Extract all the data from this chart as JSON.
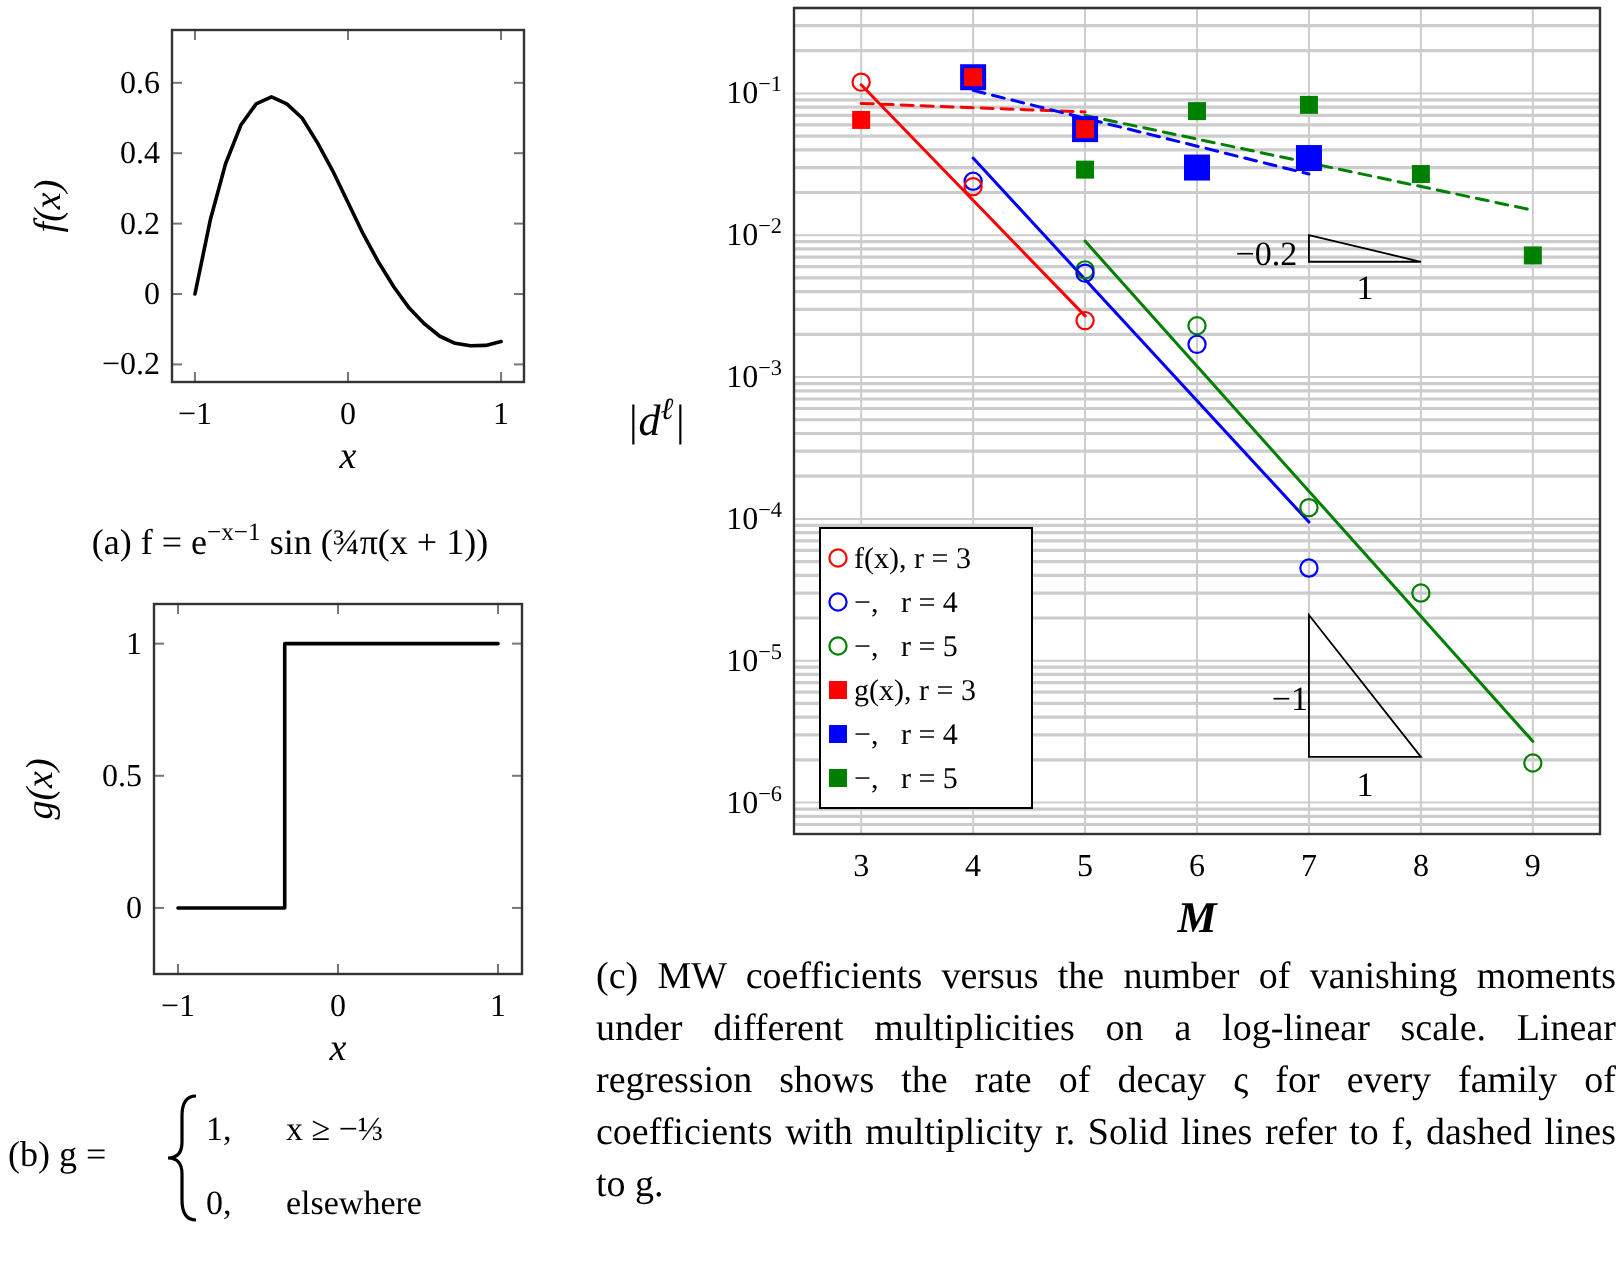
{
  "chart_data": [
    {
      "type": "line",
      "title": "(a) f = e$^{−x−1}$ sin (¾π(x + 1))",
      "xlabel": "x",
      "ylabel": "f(x)",
      "xlim": [
        -1.15,
        1.15
      ],
      "ylim": [
        -0.25,
        0.75
      ],
      "xticks": [
        {
          "value": -1,
          "label": "−1"
        },
        0,
        1
      ],
      "yticks": [
        {
          "value": -0.2,
          "label": "−0.2"
        },
        0,
        0.2,
        0.4,
        0.6
      ],
      "series": [
        {
          "color": "#000000",
          "x": [
            -1,
            -0.9,
            -0.8,
            -0.7,
            -0.6,
            -0.5,
            -0.4,
            -0.3,
            -0.2,
            -0.1,
            0,
            0.1,
            0.2,
            0.3,
            0.4,
            0.5,
            0.6,
            0.7,
            0.8,
            0.9,
            1
          ],
          "values": [
            0,
            0.21,
            0.37,
            0.48,
            0.54,
            0.56,
            0.54,
            0.5,
            0.43,
            0.35,
            0.26,
            0.17,
            0.09,
            0.02,
            -0.04,
            -0.085,
            -0.12,
            -0.14,
            -0.147,
            -0.146,
            -0.135
          ]
        }
      ]
    },
    {
      "type": "step",
      "title": "(b) g =",
      "annotations": [
        "1,",
        "x ≥ −⅓",
        "0,",
        "elsewhere"
      ],
      "xlabel": "x",
      "ylabel": "g(x)",
      "xlim": [
        -1.15,
        1.15
      ],
      "ylim": [
        -0.25,
        1.15
      ],
      "xticks": [
        {
          "value": -1,
          "label": "−1"
        },
        0,
        1
      ],
      "yticks": [
        0,
        0.5,
        1
      ],
      "series": [
        {
          "color": "#000000",
          "x": [
            -1,
            -0.333,
            1
          ],
          "values": [
            0,
            1,
            1
          ]
        }
      ]
    },
    {
      "type": "scatter",
      "title": "(c) MW coefficients versus the number of vanishing moments under different multiplicities on a log-linear scale. Linear regression shows the rate of decay ς for every family of coefficients with multiplicity r. Solid lines refer to f, dashed lines to g.",
      "xlabel": "M",
      "ylabel": "|d$^{ℓ}$|",
      "log": "y",
      "grid": true,
      "legend": "bottom left",
      "annotations": [
        "−0.2",
        "1",
        "−1",
        "1"
      ],
      "xlim": [
        2.4,
        9.6
      ],
      "ylim": [
        6e-07,
        0.4
      ],
      "xticks": [
        3,
        4,
        5,
        6,
        7,
        8,
        9
      ],
      "yticks": [
        {
          "value": 7e-07,
          "label": null
        },
        {
          "value": 8e-07,
          "label": null
        },
        {
          "value": 9e-07,
          "label": null
        },
        {
          "value": 1e-06,
          "label": "10$^{−6}$"
        },
        {
          "value": 2e-06,
          "label": null
        },
        {
          "value": 3e-06,
          "label": null
        },
        {
          "value": 4e-06,
          "label": null
        },
        {
          "value": 5e-06,
          "label": null
        },
        {
          "value": 6e-06,
          "label": null
        },
        {
          "value": 7e-06,
          "label": null
        },
        {
          "value": 8e-06,
          "label": null
        },
        {
          "value": 9e-06,
          "label": null
        },
        {
          "value": 1e-05,
          "label": "10$^{−5}$"
        },
        {
          "value": 2e-05,
          "label": null
        },
        {
          "value": 3e-05,
          "label": null
        },
        {
          "value": 4e-05,
          "label": null
        },
        {
          "value": 5e-05,
          "label": null
        },
        {
          "value": 6e-05,
          "label": null
        },
        {
          "value": 7e-05,
          "label": null
        },
        {
          "value": 8e-05,
          "label": null
        },
        {
          "value": 9e-05,
          "label": null
        },
        {
          "value": 0.0001,
          "label": "10$^{−4}$"
        },
        {
          "value": 0.0002,
          "label": null
        },
        {
          "value": 0.0003,
          "label": null
        },
        {
          "value": 0.0004,
          "label": null
        },
        {
          "value": 0.0005,
          "label": null
        },
        {
          "value": 0.0006,
          "label": null
        },
        {
          "value": 0.0007,
          "label": null
        },
        {
          "value": 0.0008,
          "label": null
        },
        {
          "value": 0.0009,
          "label": null
        },
        {
          "value": 0.001,
          "label": "10$^{−3}$"
        },
        {
          "value": 0.002,
          "label": null
        },
        {
          "value": 0.003,
          "label": null
        },
        {
          "value": 0.004,
          "label": null
        },
        {
          "value": 0.005,
          "label": null
        },
        {
          "value": 0.006,
          "label": null
        },
        {
          "value": 0.007,
          "label": null
        },
        {
          "value": 0.008,
          "label": null
        },
        {
          "value": 0.009,
          "label": null
        },
        {
          "value": 0.01,
          "label": "10$^{−2}$"
        },
        {
          "value": 0.02,
          "label": null
        },
        {
          "value": 0.03,
          "label": null
        },
        {
          "value": 0.04,
          "label": null
        },
        {
          "value": 0.05,
          "label": null
        },
        {
          "value": 0.06,
          "label": null
        },
        {
          "value": 0.07,
          "label": null
        },
        {
          "value": 0.08,
          "label": null
        },
        {
          "value": 0.09,
          "label": null
        },
        {
          "value": 0.1,
          "label": "10$^{−1}$"
        },
        {
          "value": 0.2,
          "label": null
        },
        {
          "value": 0.3,
          "label": null
        },
        {
          "value": 0.4,
          "label": null
        }
      ],
      "series": [
        {
          "type": "line",
          "color": "#ff0000",
          "line_style": "solid",
          "marker": "none",
          "x": [
            3,
            5
          ],
          "values": [
            0.115,
            0.0027
          ]
        },
        {
          "type": "line",
          "color": "#0000ff",
          "line_style": "solid",
          "marker": "none",
          "x": [
            4,
            7
          ],
          "values": [
            0.035,
            9.5e-05
          ]
        },
        {
          "type": "line",
          "color": "#008000",
          "line_style": "solid",
          "marker": "none",
          "x": [
            5,
            9
          ],
          "values": [
            0.0091,
            2.7e-06
          ]
        },
        {
          "type": "line",
          "color": "#ff0000",
          "line_style": "dashed",
          "marker": "none",
          "x": [
            3,
            5
          ],
          "values": [
            0.085,
            0.074
          ]
        },
        {
          "type": "line",
          "color": "#0000ff",
          "line_style": "dashed",
          "marker": "none",
          "x": [
            4,
            7
          ],
          "values": [
            0.105,
            0.027
          ]
        },
        {
          "type": "line",
          "color": "#008000",
          "line_style": "dashed",
          "marker": "none",
          "x": [
            5,
            9
          ],
          "values": [
            0.07,
            0.015
          ]
        },
        {
          "name": "f(x), r = 3",
          "color": "#ff0000",
          "marker": "circle",
          "x": [
            3,
            4,
            5
          ],
          "values": [
            0.12,
            0.022,
            0.0025
          ]
        },
        {
          "name": "−,   r = 4",
          "color": "#0000ff",
          "marker": "circle",
          "x": [
            4,
            5,
            6,
            7
          ],
          "values": [
            0.024,
            0.0054,
            0.0017,
            4.5e-05
          ]
        },
        {
          "name": "−,   r = 5",
          "color": "#008000",
          "marker": "circle",
          "x": [
            5,
            6,
            7,
            8,
            9
          ],
          "values": [
            0.0057,
            0.0023,
            0.00012,
            3e-05,
            1.9e-06
          ]
        },
        {
          "name": "g(x), r = 3",
          "color": "#ff0000",
          "marker": "square",
          "x": [
            3,
            4,
            5
          ],
          "values": [
            0.065,
            0.13,
            0.056
          ]
        },
        {
          "name": "−,   r = 4",
          "color": "#0000ff",
          "marker": "square",
          "x": [
            4,
            5,
            6,
            7
          ],
          "values": [
            0.13,
            0.056,
            0.03,
            0.035
          ]
        },
        {
          "name": "−,   r = 5",
          "color": "#008000",
          "marker": "square",
          "x": [
            5,
            6,
            7,
            8,
            9
          ],
          "values": [
            0.029,
            0.075,
            0.083,
            0.027,
            0.0072
          ]
        }
      ]
    }
  ]
}
